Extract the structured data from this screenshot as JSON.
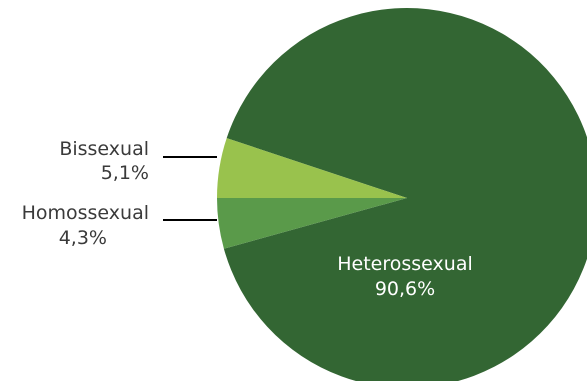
{
  "chart_data": {
    "type": "pie",
    "categories": [
      "Heterossexual",
      "Bissexual",
      "Homossexual"
    ],
    "values": [
      90.6,
      5.1,
      4.3
    ],
    "value_labels": [
      "90,6%",
      "5,1%",
      "4,3%"
    ],
    "colors": [
      "#336633",
      "#99c24d",
      "#5a9a4a"
    ],
    "title": ""
  }
}
